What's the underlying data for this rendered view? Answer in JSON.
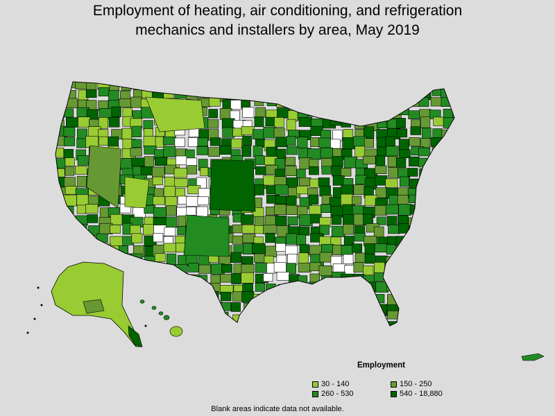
{
  "title_line1": "Employment of heating, air conditioning, and refrigeration",
  "title_line2": "mechanics and installers by area, May 2019",
  "legend": {
    "title": "Employment",
    "items": [
      {
        "label": "30 - 140",
        "color": "#99cc33"
      },
      {
        "label": "150 - 250",
        "color": "#669933"
      },
      {
        "label": "260 - 530",
        "color": "#228b22"
      },
      {
        "label": "540 - 18,880",
        "color": "#006400"
      }
    ]
  },
  "footnote": "Blank areas indicate data not available.",
  "colors": {
    "background": "#dcdcdc",
    "no_data": "#ffffff",
    "border": "#000000"
  }
}
